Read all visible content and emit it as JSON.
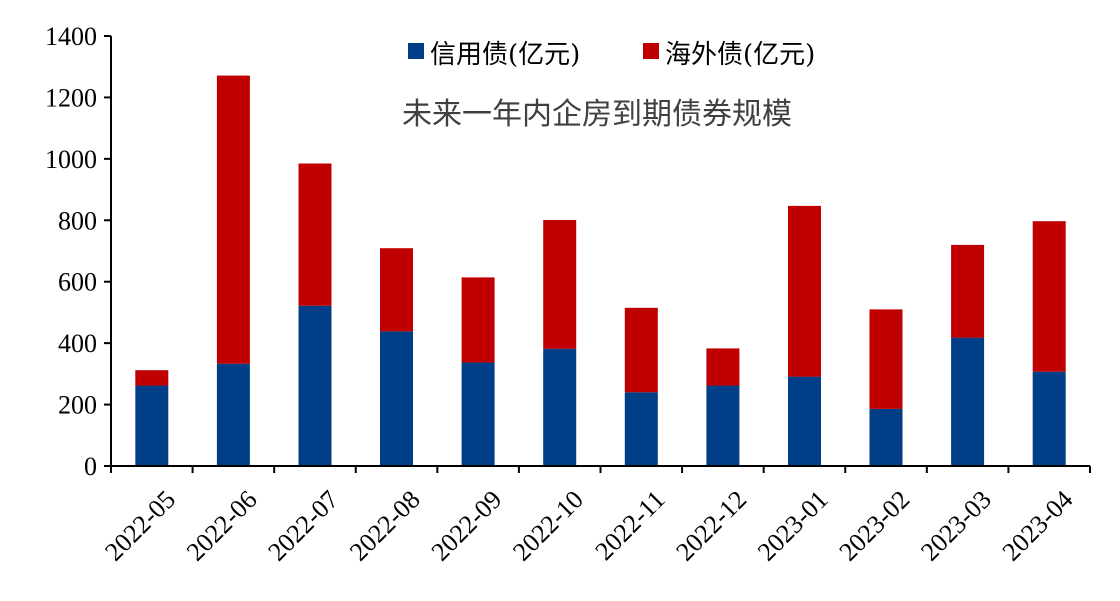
{
  "chart_data": {
    "type": "bar",
    "stacked": true,
    "title": "未来一年内企房到期债券规模",
    "xlabel": "",
    "ylabel": "",
    "ylim": [
      0,
      1400
    ],
    "yticks": [
      0,
      200,
      400,
      600,
      800,
      1000,
      1200,
      1400
    ],
    "grid": false,
    "legend_position": "top",
    "categories": [
      "2022-05",
      "2022-06",
      "2022-07",
      "2022-08",
      "2022-09",
      "2022-10",
      "2022-11",
      "2022-12",
      "2023-01",
      "2023-02",
      "2023-03",
      "2023-04"
    ],
    "series": [
      {
        "name": "信用债(亿元)",
        "color": "#003f87",
        "values": [
          262,
          333,
          522,
          438,
          337,
          382,
          240,
          262,
          291,
          186,
          418,
          307
        ]
      },
      {
        "name": "海外债(亿元)",
        "color": "#c00000",
        "values": [
          50,
          938,
          463,
          271,
          277,
          419,
          275,
          121,
          556,
          324,
          302,
          490
        ]
      }
    ]
  }
}
